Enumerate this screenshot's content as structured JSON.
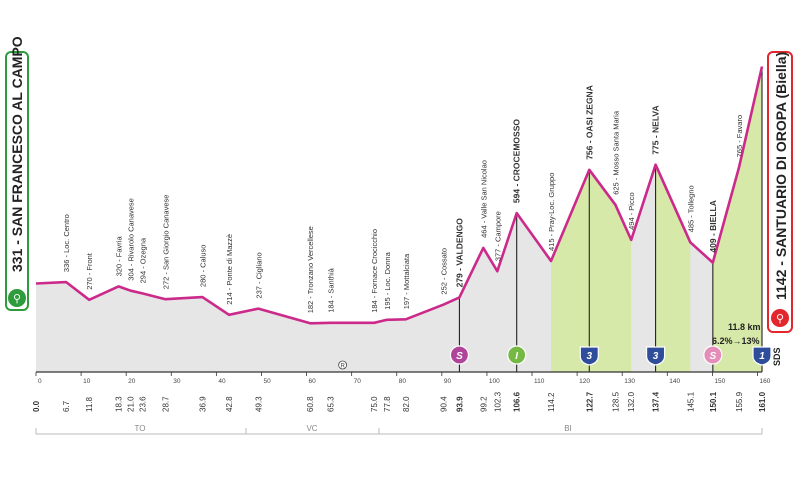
{
  "colors": {
    "profile_line": "#cc2a8b",
    "fill_gray": "#e6e6e6",
    "fill_green": "#d7e9a8",
    "start_border": "#2e9b3c",
    "finish_border": "#e3262b",
    "axis": "#333333",
    "sprint_magenta": "#b0449a",
    "sprint_green": "#75b843",
    "kom_blue": "#2e4d9a",
    "sprint_pink": "#e48db8"
  },
  "start": {
    "label": "331 - SAN FRANCESCO AL CAMPO",
    "icon": "cyclist-icon"
  },
  "finish": {
    "label": "1142 - SANTUARIO DI OROPA (Biella)",
    "icon": "cyclist-icon",
    "code": "SDS"
  },
  "climb_info": {
    "line1": "11.8 km",
    "line2": "6.2%→13%"
  },
  "provinces": [
    "TO",
    "VC",
    "BI"
  ],
  "chart_data": {
    "type": "area",
    "title": "",
    "xlabel": "",
    "ylabel": "",
    "xlim": [
      0,
      161
    ],
    "ylim": [
      0,
      1200
    ],
    "x_ticks": [
      0,
      10,
      20,
      30,
      40,
      50,
      60,
      70,
      80,
      90,
      100,
      110,
      120,
      130,
      140,
      150,
      160
    ],
    "profile": [
      [
        0,
        331
      ],
      [
        6.7,
        336
      ],
      [
        11.8,
        270
      ],
      [
        18.3,
        320
      ],
      [
        21.0,
        304
      ],
      [
        23.6,
        294
      ],
      [
        28.7,
        272
      ],
      [
        36.9,
        280
      ],
      [
        42.8,
        214
      ],
      [
        49.3,
        237
      ],
      [
        60.8,
        182
      ],
      [
        65.3,
        184
      ],
      [
        75.0,
        184
      ],
      [
        77.8,
        195
      ],
      [
        82.0,
        197
      ],
      [
        90.4,
        252
      ],
      [
        93.9,
        279
      ],
      [
        99.2,
        464
      ],
      [
        102.3,
        377
      ],
      [
        106.6,
        594
      ],
      [
        114.2,
        415
      ],
      [
        122.7,
        756
      ],
      [
        128.5,
        625
      ],
      [
        132.0,
        494
      ],
      [
        137.4,
        775
      ],
      [
        145.1,
        485
      ],
      [
        150.1,
        409
      ],
      [
        155.9,
        765
      ],
      [
        161.0,
        1142
      ]
    ],
    "green_segments": [
      [
        114.2,
        132.0
      ],
      [
        137.4,
        145.1
      ],
      [
        150.1,
        161.0
      ]
    ],
    "waypoints": [
      {
        "km": "6.7",
        "alt": "336",
        "name": "Loc. Centro"
      },
      {
        "km": "11.8",
        "alt": "270",
        "name": "Front"
      },
      {
        "km": "18.3",
        "alt": "320",
        "name": "Favria"
      },
      {
        "km": "21.0",
        "alt": "304",
        "name": "Rivarolo Canavese"
      },
      {
        "km": "23.6",
        "alt": "294",
        "name": "Ozegna"
      },
      {
        "km": "28.7",
        "alt": "272",
        "name": "San Giorgio Canavese"
      },
      {
        "km": "36.9",
        "alt": "280",
        "name": "Caluso"
      },
      {
        "km": "42.8",
        "alt": "214",
        "name": "Ponte di Mazzè"
      },
      {
        "km": "49.3",
        "alt": "237",
        "name": "Cigliano"
      },
      {
        "km": "60.8",
        "alt": "182",
        "name": "Tronzano Vercellese"
      },
      {
        "km": "65.3",
        "alt": "184",
        "name": "Santhià"
      },
      {
        "km": "75.0",
        "alt": "184",
        "name": "Fornace Crocicchio"
      },
      {
        "km": "77.8",
        "alt": "195",
        "name": "Loc. Donna"
      },
      {
        "km": "82.0",
        "alt": "197",
        "name": "Mottalciata"
      },
      {
        "km": "90.4",
        "alt": "252",
        "name": "Cossato"
      },
      {
        "km": "93.9",
        "alt": "279",
        "name": "VALDENGO",
        "bold": true,
        "marker": "S",
        "marker_color": "sprint_magenta"
      },
      {
        "km": "99.2",
        "alt": "464",
        "name": "Valle San Nicolao"
      },
      {
        "km": "102.3",
        "alt": "377",
        "name": "Campore"
      },
      {
        "km": "106.6",
        "alt": "594",
        "name": "CROCEMOSSO",
        "bold": true,
        "marker": "I",
        "marker_color": "sprint_green"
      },
      {
        "km": "114.2",
        "alt": "415",
        "name": "Pray-Loc. Gruppo"
      },
      {
        "km": "122.7",
        "alt": "756",
        "name": "OASI ZEGNA",
        "bold": true,
        "marker": "3",
        "marker_color": "kom_blue",
        "shape": "shield"
      },
      {
        "km": "128.5",
        "alt": "625",
        "name": "Mosso Santa Maria"
      },
      {
        "km": "132.0",
        "alt": "494",
        "name": "Picco"
      },
      {
        "km": "137.4",
        "alt": "775",
        "name": "NELVA",
        "bold": true,
        "marker": "3",
        "marker_color": "kom_blue",
        "shape": "shield"
      },
      {
        "km": "145.1",
        "alt": "485",
        "name": "Tollegno"
      },
      {
        "km": "150.1",
        "alt": "409",
        "name": "BIELLA",
        "bold": true,
        "marker": "S",
        "marker_color": "sprint_pink"
      },
      {
        "km": "155.9",
        "alt": "765",
        "name": "Favaro"
      },
      {
        "km": "161.0",
        "marker": "1",
        "marker_color": "kom_blue",
        "shape": "shield"
      }
    ],
    "km_labels": [
      {
        "v": "0.0",
        "bold": true
      },
      {
        "v": "6.7"
      },
      {
        "v": "11.8"
      },
      {
        "v": "18.3"
      },
      {
        "v": "21.0"
      },
      {
        "v": "23.6"
      },
      {
        "v": "28.7"
      },
      {
        "v": "36.9"
      },
      {
        "v": "42.8"
      },
      {
        "v": "49.3"
      },
      {
        "v": "60.8"
      },
      {
        "v": "65.3"
      },
      {
        "v": "75.0"
      },
      {
        "v": "77.8"
      },
      {
        "v": "82.0"
      },
      {
        "v": "90.4"
      },
      {
        "v": "93.9",
        "bold": true
      },
      {
        "v": "99.2"
      },
      {
        "v": "102.3"
      },
      {
        "v": "106.6",
        "bold": true
      },
      {
        "v": "114.2"
      },
      {
        "v": "122.7",
        "bold": true
      },
      {
        "v": "128.5"
      },
      {
        "v": "132.0"
      },
      {
        "v": "137.4",
        "bold": true
      },
      {
        "v": "145.1"
      },
      {
        "v": "150.1",
        "bold": true
      },
      {
        "v": "155.9"
      },
      {
        "v": "161.0",
        "bold": true
      }
    ],
    "small_marker": {
      "km": "68.0",
      "symbol": "R"
    }
  }
}
